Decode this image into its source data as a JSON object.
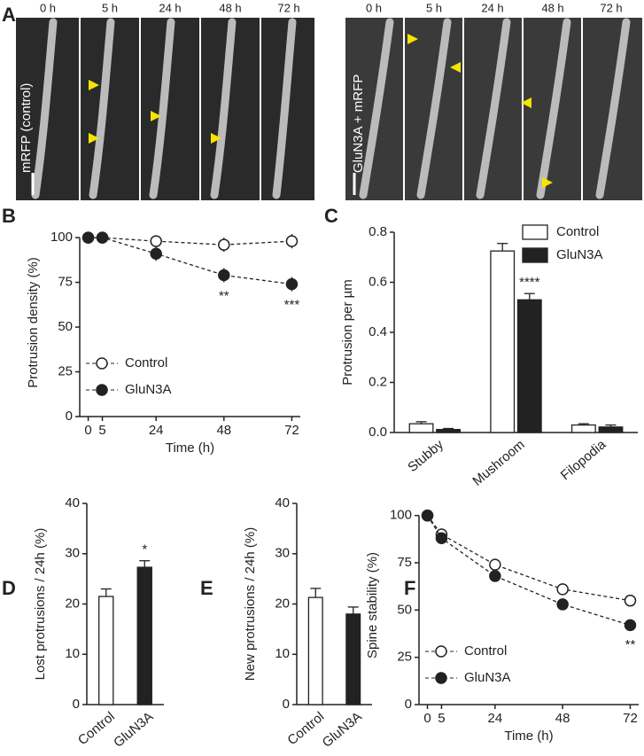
{
  "panel_a": {
    "letter": "A",
    "left_label": "mRFP (control)",
    "right_label": "GluN3A + mRFP",
    "left_times": [
      "0 h",
      "5 h",
      "24 h",
      "48 h",
      "72 h"
    ],
    "right_times": [
      "0 h",
      "5 h",
      "24 h",
      "48 h",
      "72 h"
    ]
  },
  "chart_data": [
    {
      "type": "line",
      "panel": "B",
      "ylabel": "Protrusion density (%)",
      "xlabel": "Time (h)",
      "x": [
        0,
        5,
        24,
        48,
        72
      ],
      "xlim": [
        -3,
        75
      ],
      "xticks": [
        0,
        5,
        24,
        48,
        72
      ],
      "ylim": [
        0,
        105
      ],
      "yticks": [
        0,
        25,
        50,
        75,
        100
      ],
      "legend": "lower left",
      "series": [
        {
          "name": "Control",
          "color": "#222222",
          "marker_fill": "#ffffff",
          "values": [
            100,
            100,
            98,
            96,
            98
          ],
          "errors": [
            0,
            2,
            2,
            4,
            4
          ]
        },
        {
          "name": "GluN3A",
          "color": "#222222",
          "marker_fill": "#222222",
          "values": [
            100,
            100,
            91,
            79,
            74
          ],
          "errors": [
            0,
            3,
            4,
            4,
            4
          ]
        }
      ],
      "annotations": [
        {
          "text": "**",
          "x": 48
        },
        {
          "text": "***",
          "x": 72
        }
      ]
    },
    {
      "type": "bar",
      "panel": "C",
      "ylabel": "Protrusion per µm",
      "categories": [
        "Stubby",
        "Mushroom",
        "Filopodia"
      ],
      "ylim": [
        0,
        0.8
      ],
      "yticks": [
        {
          "value": 0,
          "label": "0.0"
        },
        0.2,
        0.4,
        0.6,
        0.8
      ],
      "legend": "upper right",
      "series": [
        {
          "name": "Control",
          "color": "#ffffff",
          "values": [
            0.035,
            0.725,
            0.03
          ],
          "errors": [
            0.008,
            0.03,
            0.005
          ]
        },
        {
          "name": "GluN3A",
          "color": "#222222",
          "values": [
            0.012,
            0.53,
            0.022
          ],
          "errors": [
            0.004,
            0.025,
            0.008
          ]
        }
      ],
      "annotations": [
        {
          "text": "****",
          "category": "Mushroom"
        }
      ]
    },
    {
      "type": "bar",
      "panel": "D",
      "ylabel": "Lost protrusions / 24h (%)",
      "categories": [
        "Control",
        "GluN3A"
      ],
      "colors": [
        "#ffffff",
        "#222222"
      ],
      "ylim": [
        0,
        40
      ],
      "yticks": [
        0,
        10,
        20,
        30,
        40
      ],
      "values": [
        21.5,
        27.3
      ],
      "errors": [
        1.5,
        1.3
      ],
      "annotations": [
        {
          "text": "*",
          "category": "GluN3A"
        }
      ]
    },
    {
      "type": "bar",
      "panel": "E",
      "ylabel": "New protrusions / 24h (%)",
      "categories": [
        "Control",
        "GluN3A"
      ],
      "colors": [
        "#ffffff",
        "#222222"
      ],
      "ylim": [
        0,
        40
      ],
      "yticks": [
        0,
        10,
        20,
        30,
        40
      ],
      "values": [
        21.3,
        18
      ],
      "errors": [
        1.8,
        1.4
      ]
    },
    {
      "type": "line",
      "panel": "F",
      "ylabel": "Spine stability (%)",
      "xlabel": "Time (h)",
      "x": [
        0,
        5,
        24,
        48,
        72
      ],
      "xlim": [
        -3,
        75
      ],
      "xticks": [
        0,
        5,
        24,
        48,
        72
      ],
      "ylim": [
        0,
        105
      ],
      "yticks": [
        0,
        25,
        50,
        75,
        100
      ],
      "legend": "lower left",
      "series": [
        {
          "name": "Control",
          "color": "#222222",
          "marker_fill": "#ffffff",
          "values": [
            100,
            90,
            74,
            61,
            55
          ],
          "errors": [
            0,
            2,
            2,
            3,
            3
          ]
        },
        {
          "name": "GluN3A",
          "color": "#222222",
          "marker_fill": "#222222",
          "values": [
            100,
            88,
            68,
            53,
            42
          ],
          "errors": [
            0,
            2,
            2,
            3,
            3
          ]
        }
      ],
      "annotations": [
        {
          "text": "**",
          "x": 72
        }
      ]
    }
  ]
}
